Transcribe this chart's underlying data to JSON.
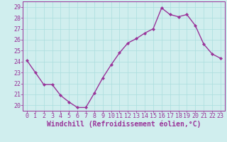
{
  "x": [
    0,
    1,
    2,
    3,
    4,
    5,
    6,
    7,
    8,
    9,
    10,
    11,
    12,
    13,
    14,
    15,
    16,
    17,
    18,
    19,
    20,
    21,
    22,
    23
  ],
  "y": [
    24.1,
    23.0,
    21.9,
    21.9,
    20.9,
    20.3,
    19.8,
    19.8,
    21.1,
    22.5,
    23.7,
    24.8,
    25.7,
    26.1,
    26.6,
    27.0,
    28.9,
    28.3,
    28.1,
    28.3,
    27.3,
    25.6,
    24.7,
    24.3
  ],
  "line_color": "#993399",
  "marker": "D",
  "marker_size": 2.2,
  "bg_color": "#d0eeee",
  "grid_color": "#aadddd",
  "xlabel": "Windchill (Refroidissement éolien,°C)",
  "xlabel_fontsize": 7,
  "tick_fontsize": 6,
  "ylim": [
    19.5,
    29.5
  ],
  "yticks": [
    20,
    21,
    22,
    23,
    24,
    25,
    26,
    27,
    28,
    29
  ],
  "xticks": [
    0,
    1,
    2,
    3,
    4,
    5,
    6,
    7,
    8,
    9,
    10,
    11,
    12,
    13,
    14,
    15,
    16,
    17,
    18,
    19,
    20,
    21,
    22,
    23
  ],
  "line_width": 1.0,
  "fig_width": 3.2,
  "fig_height": 2.0,
  "dpi": 100
}
